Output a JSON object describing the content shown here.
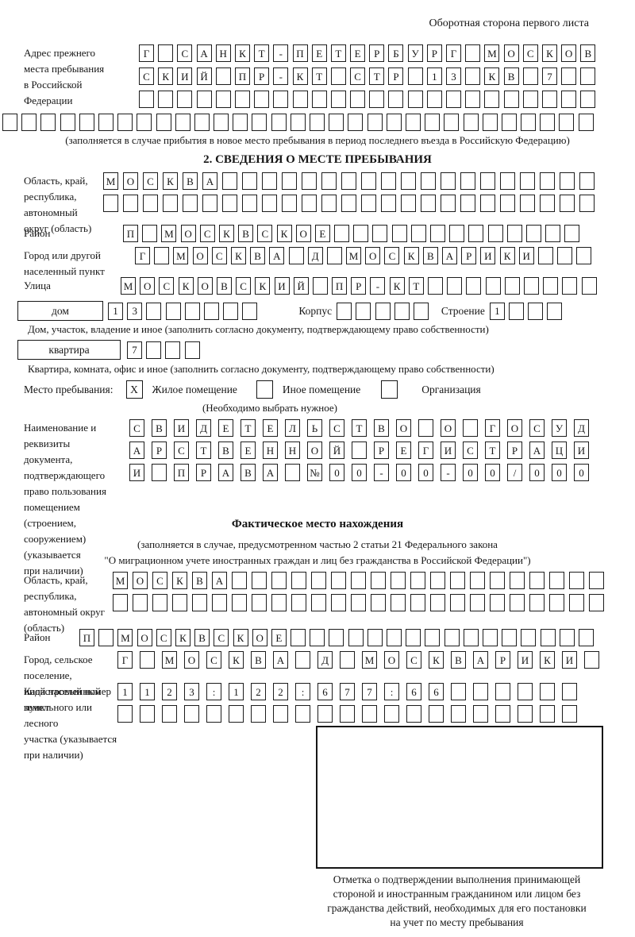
{
  "colors": {
    "ink": "#161616",
    "background": "#ffffff"
  },
  "page": {
    "header_note": "Оборотная сторона первого листа"
  },
  "prev_address": {
    "label": "Адрес прежнего\nместа пребывания\nв Российской\nФедерации",
    "rows": [
      {
        "n": 24,
        "chars": "Г САНКТ-ПЕТЕРБУРГ МОСКОВ"
      },
      {
        "n": 24,
        "chars": "СКИЙ ПР-КТ СТР 13 КВ 7"
      },
      {
        "n": 24,
        "chars": ""
      }
    ],
    "overflow_row": {
      "n": 31,
      "chars": ""
    },
    "note": "(заполняется в случае прибытия в новое место пребывания в период последнего въезда в Российскую Федерацию)"
  },
  "section2": {
    "title": "2. СВЕДЕНИЯ О МЕСТЕ ПРЕБЫВАНИЯ",
    "oblast": {
      "label": "Область, край,\nреспублика,\nавтономный\nокруг (область)",
      "rows": [
        {
          "n": 25,
          "chars": "МОСКВА"
        },
        {
          "n": 25,
          "chars": ""
        }
      ]
    },
    "raion": {
      "label": "Район",
      "row": {
        "n": 24,
        "chars": "П МОСКВСКОЕ"
      }
    },
    "gorod": {
      "label": "Город или другой\nнаселенный пункт",
      "row": {
        "n": 24,
        "chars": "Г МОСКВА Д МОСКВАРИКИ"
      }
    },
    "ulitsa": {
      "label": "Улица",
      "row": {
        "n": 25,
        "chars": "МОСКОВСКИЙ ПР-КТ"
      }
    },
    "dom": {
      "type_label": "дом",
      "num_row": {
        "n": 8,
        "chars": "13"
      },
      "korpus_label": "Корпус",
      "korpus_row": {
        "n": 5,
        "chars": ""
      },
      "stroenie_label": "Строение",
      "stroenie_row": {
        "n": 4,
        "chars": "1"
      },
      "note": "Дом, участок, владение и иное (заполнить согласно документу, подтверждающему право собственности)"
    },
    "kvartira": {
      "type_label": "квартира",
      "num_row": {
        "n": 4,
        "chars": "7"
      },
      "note": "Квартира, комната, офис и иное (заполнить согласно документу, подтверждающему право собственности)"
    },
    "mesto": {
      "label": "Место пребывания:",
      "options": [
        {
          "checked": "X",
          "label": "Жилое помещение"
        },
        {
          "checked": "",
          "label": "Иное помещение"
        },
        {
          "checked": "",
          "label": "Организация"
        }
      ],
      "note": "(Необходимо выбрать нужное)"
    },
    "doc": {
      "label": "Наименование и реквизиты\nдокумента, подтверждающего\nправо пользования\nпомещением (строением,\nсооружением) (указывается\nпри наличии)",
      "rows": [
        {
          "n": 21,
          "chars": "СВИДЕТЕЛЬСТВО О ГОСУД"
        },
        {
          "n": 21,
          "chars": "АРСТВЕННОЙ РЕГИСТРАЦИ"
        },
        {
          "n": 21,
          "chars": "И ПРАВА №00-00-00/000"
        }
      ]
    }
  },
  "fakt": {
    "title": "Фактическое место нахождения",
    "note1": "(заполняется в случае, предусмотренном частью 2 статьи 21 Федерального закона",
    "note2": "\"О миграционном учете иностранных граждан и лиц без гражданства в Российской Федерации\")",
    "oblast": {
      "label": "Область, край,\nреспублика,\nавтономный округ\n(область)",
      "rows": [
        {
          "n": 25,
          "chars": "МОСКВА"
        },
        {
          "n": 25,
          "chars": ""
        }
      ]
    },
    "raion": {
      "label": "Район",
      "row": {
        "n": 27,
        "chars": "П МОСКВСКОЕ"
      }
    },
    "gorod": {
      "label": "Город, сельское поселение,\nиной населенный пункт",
      "row": {
        "n": 22,
        "chars": "Г МОСКВА Д МОСКВАРИКИ"
      }
    },
    "kadastr": {
      "label": "Кадастровый номер\nземельного или лесного\nучастка (указывается\nпри наличии)",
      "rows": [
        {
          "n": 21,
          "chars": "1123:122:677:66"
        },
        {
          "n": 21,
          "chars": ""
        }
      ]
    },
    "stamp_note": "Отметка о подтверждении выполнения принимающей\nстороной и иностранным гражданином или лицом без\nгражданства действий, необходимых для его постановки\nна учет по месту пребывания"
  }
}
